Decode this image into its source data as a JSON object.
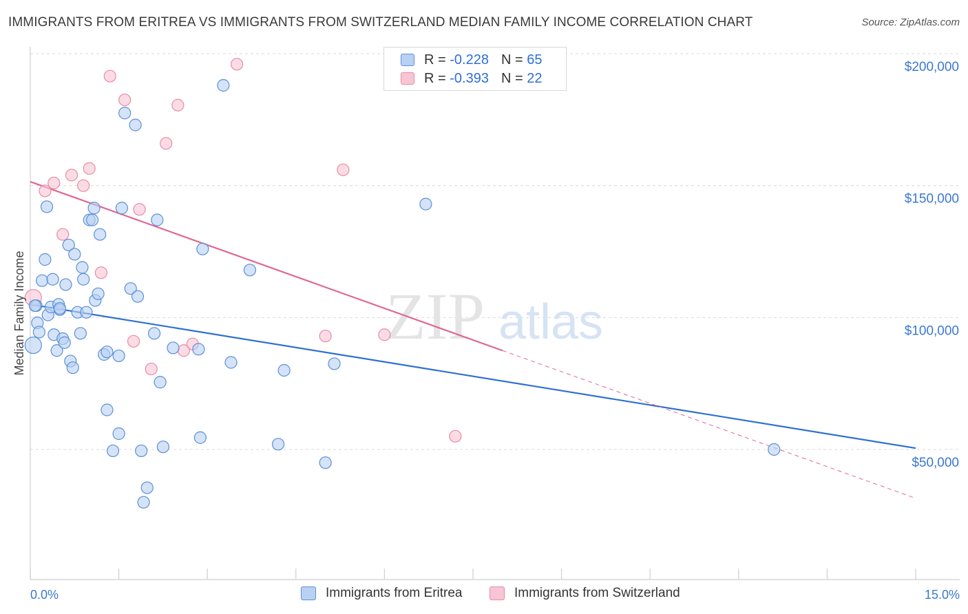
{
  "title": "IMMIGRANTS FROM ERITREA VS IMMIGRANTS FROM SWITZERLAND MEDIAN FAMILY INCOME CORRELATION CHART",
  "source": "Source: ZipAtlas.com",
  "watermark": {
    "zip": "ZIP",
    "atlas": "atlas"
  },
  "legend": {
    "r_label": "R =",
    "n_label": "N =",
    "rows": [
      {
        "r": "-0.228",
        "n": "65"
      },
      {
        "r": "-0.393",
        "n": "22"
      }
    ]
  },
  "colors": {
    "eritrea_fill": "#b8d1f3",
    "eritrea_stroke": "#5b8fd6",
    "eritrea_line": "#2d6fd1",
    "switzerland_fill": "#f8c5d4",
    "switzerland_stroke": "#e88aa5",
    "switzerland_line": "#e06790",
    "grid": "#d9d9d9",
    "axis_text": "#3b78d0"
  },
  "chart_data": {
    "type": "scatter",
    "title": "IMMIGRANTS FROM ERITREA VS IMMIGRANTS FROM SWITZERLAND MEDIAN FAMILY INCOME CORRELATION CHART",
    "xlabel": "",
    "ylabel": "Median Family Income",
    "xlim": [
      0,
      15
    ],
    "ylim": [
      5000,
      205000
    ],
    "x_tick_labels": [
      "0.0%",
      "15.0%"
    ],
    "y_ticks": [
      50000,
      100000,
      150000,
      200000
    ],
    "y_tick_labels": [
      "$50,000",
      "$100,000",
      "$150,000",
      "$200,000"
    ],
    "grid": true,
    "legend_position": "bottom",
    "series": [
      {
        "name": "Immigrants from Eritrea",
        "trend": {
          "x": [
            0.0,
            15.0
          ],
          "y": [
            105000,
            50500
          ]
        },
        "points": [
          [
            0.05,
            89500
          ],
          [
            0.1,
            104500
          ],
          [
            0.12,
            98000
          ],
          [
            0.15,
            94500
          ],
          [
            0.2,
            114000
          ],
          [
            0.25,
            122000
          ],
          [
            0.28,
            142000
          ],
          [
            0.3,
            101000
          ],
          [
            0.35,
            104000
          ],
          [
            0.38,
            114500
          ],
          [
            0.4,
            93500
          ],
          [
            0.45,
            87500
          ],
          [
            0.48,
            105000
          ],
          [
            0.5,
            103000
          ],
          [
            0.55,
            92000
          ],
          [
            0.58,
            90500
          ],
          [
            0.6,
            112500
          ],
          [
            0.65,
            127500
          ],
          [
            0.68,
            83500
          ],
          [
            0.72,
            81000
          ],
          [
            0.75,
            124000
          ],
          [
            0.8,
            102000
          ],
          [
            0.85,
            94000
          ],
          [
            0.88,
            119000
          ],
          [
            0.9,
            114500
          ],
          [
            0.95,
            102000
          ],
          [
            1.0,
            137000
          ],
          [
            1.05,
            137000
          ],
          [
            1.08,
            141500
          ],
          [
            1.1,
            106500
          ],
          [
            1.15,
            109000
          ],
          [
            1.18,
            131500
          ],
          [
            1.25,
            86000
          ],
          [
            1.3,
            87000
          ],
          [
            1.3,
            65000
          ],
          [
            1.4,
            49500
          ],
          [
            1.5,
            56000
          ],
          [
            1.5,
            85500
          ],
          [
            1.55,
            141500
          ],
          [
            1.6,
            177500
          ],
          [
            1.7,
            111000
          ],
          [
            1.78,
            173000
          ],
          [
            1.82,
            108000
          ],
          [
            1.88,
            49500
          ],
          [
            1.92,
            30000
          ],
          [
            1.98,
            35500
          ],
          [
            2.1,
            94000
          ],
          [
            2.15,
            137000
          ],
          [
            2.2,
            75500
          ],
          [
            2.25,
            51000
          ],
          [
            2.42,
            88500
          ],
          [
            2.85,
            88000
          ],
          [
            2.88,
            54500
          ],
          [
            2.92,
            126000
          ],
          [
            3.27,
            188000
          ],
          [
            3.4,
            83000
          ],
          [
            3.72,
            118000
          ],
          [
            4.2,
            52000
          ],
          [
            4.3,
            80000
          ],
          [
            5.0,
            45000
          ],
          [
            5.15,
            82500
          ],
          [
            6.7,
            143000
          ],
          [
            0.08,
            104500
          ],
          [
            0.5,
            103500
          ],
          [
            12.6,
            50000
          ]
        ]
      },
      {
        "name": "Immigrants from Switzerland",
        "trend": {
          "x": [
            0.0,
            15.0
          ],
          "y": [
            151500,
            31500
          ],
          "solid_until_x": 8.0
        },
        "points": [
          [
            0.05,
            107500
          ],
          [
            0.25,
            148000
          ],
          [
            0.4,
            151000
          ],
          [
            0.55,
            131500
          ],
          [
            0.7,
            154000
          ],
          [
            0.9,
            150000
          ],
          [
            1.0,
            156500
          ],
          [
            1.2,
            117000
          ],
          [
            1.35,
            191500
          ],
          [
            1.6,
            182500
          ],
          [
            1.75,
            91000
          ],
          [
            1.85,
            141000
          ],
          [
            2.05,
            80500
          ],
          [
            2.3,
            166000
          ],
          [
            2.5,
            180500
          ],
          [
            2.6,
            87500
          ],
          [
            2.75,
            90000
          ],
          [
            3.5,
            196000
          ],
          [
            5.0,
            93000
          ],
          [
            5.3,
            156000
          ],
          [
            6.0,
            93500
          ],
          [
            7.2,
            55000
          ]
        ]
      }
    ]
  }
}
